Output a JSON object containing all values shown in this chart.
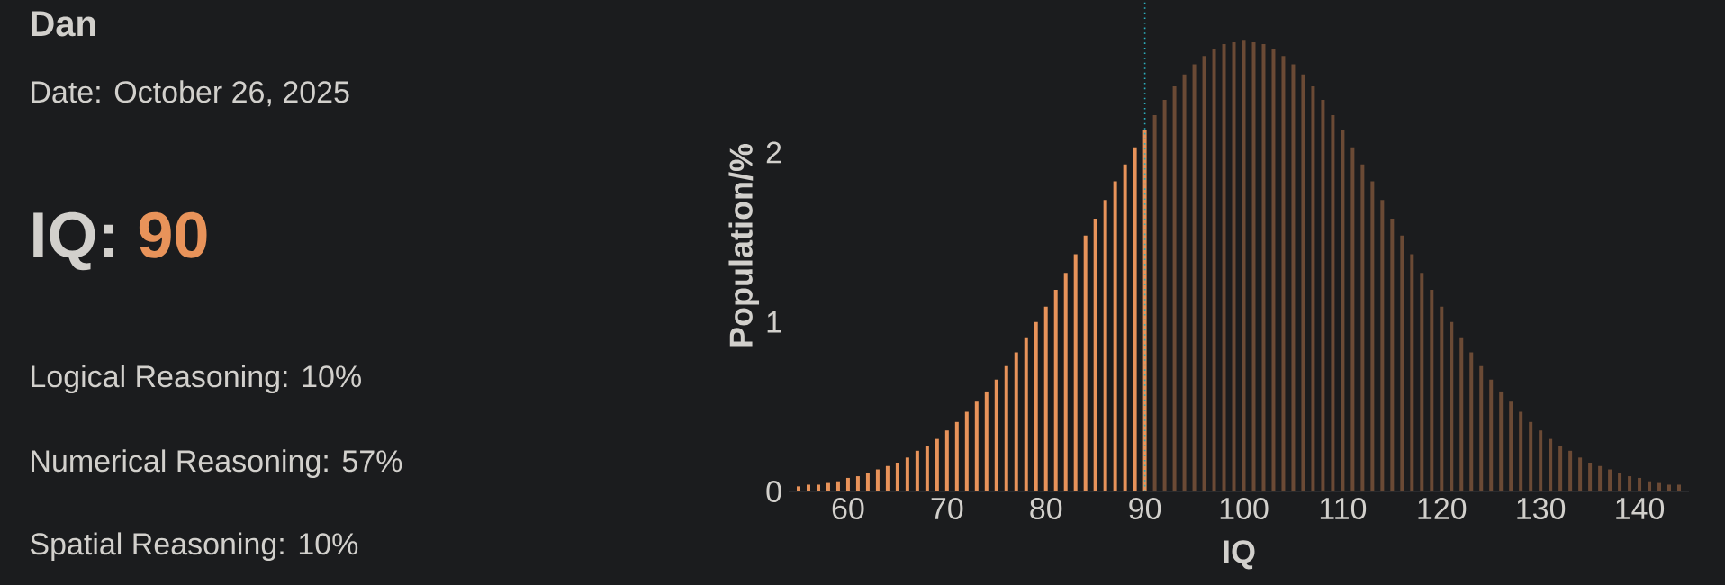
{
  "chart_data": [
    {
      "type": "other",
      "title": "Dan",
      "subtitle": "Date: October 26, 2025",
      "annotations": [
        "IQ:",
        "90",
        "Logical Reasoning: 10%",
        "Numerical Reasoning: 57%",
        "Spatial Reasoning: 10%"
      ]
    },
    {
      "type": "bar",
      "xlabel": "IQ",
      "ylabel": "Population/%",
      "xlim": [
        54,
        145
      ],
      "ylim": [
        0,
        2.9
      ],
      "xticks": [
        60,
        70,
        80,
        90,
        100,
        110,
        120,
        130,
        140
      ],
      "yticks": [
        0,
        1,
        2
      ],
      "series": [
        {
          "color": "#e8935a",
          "x": [
            55,
            56,
            57,
            58,
            59,
            60,
            61,
            62,
            63,
            64,
            65,
            66,
            67,
            68,
            69,
            70,
            71,
            72,
            73,
            74,
            75,
            76,
            77,
            78,
            79,
            80,
            81,
            82,
            83,
            84,
            85,
            86,
            87,
            88,
            89,
            90
          ],
          "values": [
            0.03,
            0.04,
            0.04,
            0.05,
            0.06,
            0.08,
            0.09,
            0.11,
            0.13,
            0.15,
            0.17,
            0.2,
            0.24,
            0.27,
            0.31,
            0.36,
            0.41,
            0.47,
            0.53,
            0.59,
            0.66,
            0.74,
            0.82,
            0.91,
            1.0,
            1.09,
            1.19,
            1.29,
            1.4,
            1.51,
            1.61,
            1.72,
            1.83,
            1.93,
            2.03,
            2.13
          ]
        },
        {
          "color": "#6b4a35",
          "x": [
            91,
            92,
            93,
            94,
            95,
            96,
            97,
            98,
            99,
            100,
            101,
            102,
            103,
            104,
            105,
            106,
            107,
            108,
            109,
            110,
            111,
            112,
            113,
            114,
            115,
            116,
            117,
            118,
            119,
            120,
            121,
            122,
            123,
            124,
            125,
            126,
            127,
            128,
            129,
            130,
            131,
            132,
            133,
            134,
            135,
            136,
            137,
            138,
            139,
            140,
            141,
            142,
            143,
            144
          ],
          "values": [
            2.22,
            2.31,
            2.39,
            2.46,
            2.52,
            2.57,
            2.61,
            2.64,
            2.65,
            2.66,
            2.65,
            2.64,
            2.61,
            2.57,
            2.52,
            2.46,
            2.39,
            2.31,
            2.22,
            2.13,
            2.03,
            1.93,
            1.83,
            1.72,
            1.61,
            1.51,
            1.4,
            1.29,
            1.19,
            1.09,
            1.0,
            0.91,
            0.82,
            0.74,
            0.66,
            0.59,
            0.53,
            0.47,
            0.41,
            0.36,
            0.31,
            0.27,
            0.24,
            0.2,
            0.17,
            0.15,
            0.13,
            0.11,
            0.09,
            0.08,
            0.06,
            0.05,
            0.04,
            0.04
          ]
        }
      ],
      "ref_lines": [
        {
          "axis": "x",
          "value": 90,
          "color": "#2bb0c0",
          "line_style": "dotted"
        }
      ]
    }
  ]
}
